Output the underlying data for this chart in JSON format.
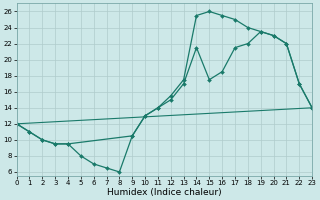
{
  "bg_color": "#cde8e8",
  "grid_color": "#b0cccc",
  "line_color": "#1a7a6a",
  "line1_x": [
    0,
    1,
    2,
    3,
    4,
    9,
    10,
    11,
    12,
    13,
    14,
    15,
    16,
    17,
    18,
    19,
    20,
    21,
    22,
    23
  ],
  "line1_y": [
    12,
    11,
    10,
    9.5,
    9.5,
    10.5,
    13,
    14,
    15.5,
    17.5,
    25.5,
    26,
    25.5,
    25,
    24,
    23.5,
    23,
    22,
    17,
    14
  ],
  "line2_x": [
    0,
    1,
    2,
    3,
    4,
    5,
    6,
    7,
    8,
    9,
    10,
    11,
    12,
    13,
    14,
    15,
    16,
    17,
    18,
    19,
    20,
    21,
    22,
    23
  ],
  "line2_y": [
    12,
    11,
    10,
    9.5,
    9.5,
    8,
    7,
    6.5,
    6,
    10.5,
    13,
    14,
    15,
    17,
    21.5,
    17.5,
    18.5,
    21.5,
    22,
    23.5,
    23,
    22,
    17,
    14
  ],
  "line3_x": [
    0,
    23
  ],
  "line3_y": [
    12,
    14
  ],
  "xlim": [
    0,
    23
  ],
  "ylim": [
    5.5,
    27
  ],
  "xticks": [
    0,
    1,
    2,
    3,
    4,
    5,
    6,
    7,
    8,
    9,
    10,
    11,
    12,
    13,
    14,
    15,
    16,
    17,
    18,
    19,
    20,
    21,
    22,
    23
  ],
  "yticks": [
    6,
    8,
    10,
    12,
    14,
    16,
    18,
    20,
    22,
    24,
    26
  ],
  "xlabel": "Humidex (Indice chaleur)",
  "xlabel_fontsize": 6.5,
  "tick_fontsize": 5.0
}
